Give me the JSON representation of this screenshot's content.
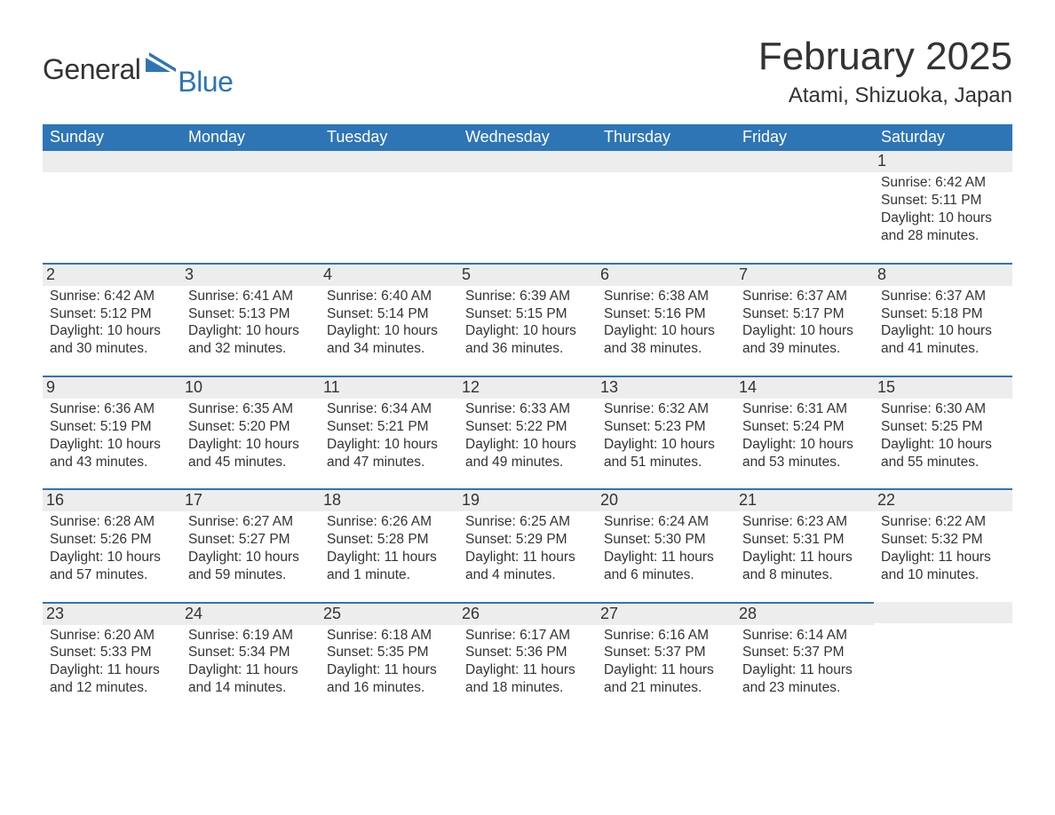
{
  "brand": {
    "text_general": "General",
    "text_blue": "Blue",
    "icon_color": "#2e75b6"
  },
  "title": "February 2025",
  "location": "Atami, Shizuoka, Japan",
  "colors": {
    "header_bg": "#2e75b6",
    "header_text": "#ffffff",
    "daynum_bg": "#ededed",
    "daynum_border": "#2e75b6",
    "body_text": "#333333",
    "background": "#ffffff"
  },
  "typography": {
    "title_fontsize": 44,
    "location_fontsize": 24,
    "weekday_fontsize": 18,
    "daynum_fontsize": 18,
    "content_fontsize": 15.5,
    "font_family": "Segoe UI"
  },
  "weekdays": [
    "Sunday",
    "Monday",
    "Tuesday",
    "Wednesday",
    "Thursday",
    "Friday",
    "Saturday"
  ],
  "weeks": [
    [
      null,
      null,
      null,
      null,
      null,
      null,
      {
        "n": "1",
        "sunrise": "Sunrise: 6:42 AM",
        "sunset": "Sunset: 5:11 PM",
        "daylight": "Daylight: 10 hours and 28 minutes."
      }
    ],
    [
      {
        "n": "2",
        "sunrise": "Sunrise: 6:42 AM",
        "sunset": "Sunset: 5:12 PM",
        "daylight": "Daylight: 10 hours and 30 minutes."
      },
      {
        "n": "3",
        "sunrise": "Sunrise: 6:41 AM",
        "sunset": "Sunset: 5:13 PM",
        "daylight": "Daylight: 10 hours and 32 minutes."
      },
      {
        "n": "4",
        "sunrise": "Sunrise: 6:40 AM",
        "sunset": "Sunset: 5:14 PM",
        "daylight": "Daylight: 10 hours and 34 minutes."
      },
      {
        "n": "5",
        "sunrise": "Sunrise: 6:39 AM",
        "sunset": "Sunset: 5:15 PM",
        "daylight": "Daylight: 10 hours and 36 minutes."
      },
      {
        "n": "6",
        "sunrise": "Sunrise: 6:38 AM",
        "sunset": "Sunset: 5:16 PM",
        "daylight": "Daylight: 10 hours and 38 minutes."
      },
      {
        "n": "7",
        "sunrise": "Sunrise: 6:37 AM",
        "sunset": "Sunset: 5:17 PM",
        "daylight": "Daylight: 10 hours and 39 minutes."
      },
      {
        "n": "8",
        "sunrise": "Sunrise: 6:37 AM",
        "sunset": "Sunset: 5:18 PM",
        "daylight": "Daylight: 10 hours and 41 minutes."
      }
    ],
    [
      {
        "n": "9",
        "sunrise": "Sunrise: 6:36 AM",
        "sunset": "Sunset: 5:19 PM",
        "daylight": "Daylight: 10 hours and 43 minutes."
      },
      {
        "n": "10",
        "sunrise": "Sunrise: 6:35 AM",
        "sunset": "Sunset: 5:20 PM",
        "daylight": "Daylight: 10 hours and 45 minutes."
      },
      {
        "n": "11",
        "sunrise": "Sunrise: 6:34 AM",
        "sunset": "Sunset: 5:21 PM",
        "daylight": "Daylight: 10 hours and 47 minutes."
      },
      {
        "n": "12",
        "sunrise": "Sunrise: 6:33 AM",
        "sunset": "Sunset: 5:22 PM",
        "daylight": "Daylight: 10 hours and 49 minutes."
      },
      {
        "n": "13",
        "sunrise": "Sunrise: 6:32 AM",
        "sunset": "Sunset: 5:23 PM",
        "daylight": "Daylight: 10 hours and 51 minutes."
      },
      {
        "n": "14",
        "sunrise": "Sunrise: 6:31 AM",
        "sunset": "Sunset: 5:24 PM",
        "daylight": "Daylight: 10 hours and 53 minutes."
      },
      {
        "n": "15",
        "sunrise": "Sunrise: 6:30 AM",
        "sunset": "Sunset: 5:25 PM",
        "daylight": "Daylight: 10 hours and 55 minutes."
      }
    ],
    [
      {
        "n": "16",
        "sunrise": "Sunrise: 6:28 AM",
        "sunset": "Sunset: 5:26 PM",
        "daylight": "Daylight: 10 hours and 57 minutes."
      },
      {
        "n": "17",
        "sunrise": "Sunrise: 6:27 AM",
        "sunset": "Sunset: 5:27 PM",
        "daylight": "Daylight: 10 hours and 59 minutes."
      },
      {
        "n": "18",
        "sunrise": "Sunrise: 6:26 AM",
        "sunset": "Sunset: 5:28 PM",
        "daylight": "Daylight: 11 hours and 1 minute."
      },
      {
        "n": "19",
        "sunrise": "Sunrise: 6:25 AM",
        "sunset": "Sunset: 5:29 PM",
        "daylight": "Daylight: 11 hours and 4 minutes."
      },
      {
        "n": "20",
        "sunrise": "Sunrise: 6:24 AM",
        "sunset": "Sunset: 5:30 PM",
        "daylight": "Daylight: 11 hours and 6 minutes."
      },
      {
        "n": "21",
        "sunrise": "Sunrise: 6:23 AM",
        "sunset": "Sunset: 5:31 PM",
        "daylight": "Daylight: 11 hours and 8 minutes."
      },
      {
        "n": "22",
        "sunrise": "Sunrise: 6:22 AM",
        "sunset": "Sunset: 5:32 PM",
        "daylight": "Daylight: 11 hours and 10 minutes."
      }
    ],
    [
      {
        "n": "23",
        "sunrise": "Sunrise: 6:20 AM",
        "sunset": "Sunset: 5:33 PM",
        "daylight": "Daylight: 11 hours and 12 minutes."
      },
      {
        "n": "24",
        "sunrise": "Sunrise: 6:19 AM",
        "sunset": "Sunset: 5:34 PM",
        "daylight": "Daylight: 11 hours and 14 minutes."
      },
      {
        "n": "25",
        "sunrise": "Sunrise: 6:18 AM",
        "sunset": "Sunset: 5:35 PM",
        "daylight": "Daylight: 11 hours and 16 minutes."
      },
      {
        "n": "26",
        "sunrise": "Sunrise: 6:17 AM",
        "sunset": "Sunset: 5:36 PM",
        "daylight": "Daylight: 11 hours and 18 minutes."
      },
      {
        "n": "27",
        "sunrise": "Sunrise: 6:16 AM",
        "sunset": "Sunset: 5:37 PM",
        "daylight": "Daylight: 11 hours and 21 minutes."
      },
      {
        "n": "28",
        "sunrise": "Sunrise: 6:14 AM",
        "sunset": "Sunset: 5:37 PM",
        "daylight": "Daylight: 11 hours and 23 minutes."
      },
      null
    ]
  ]
}
